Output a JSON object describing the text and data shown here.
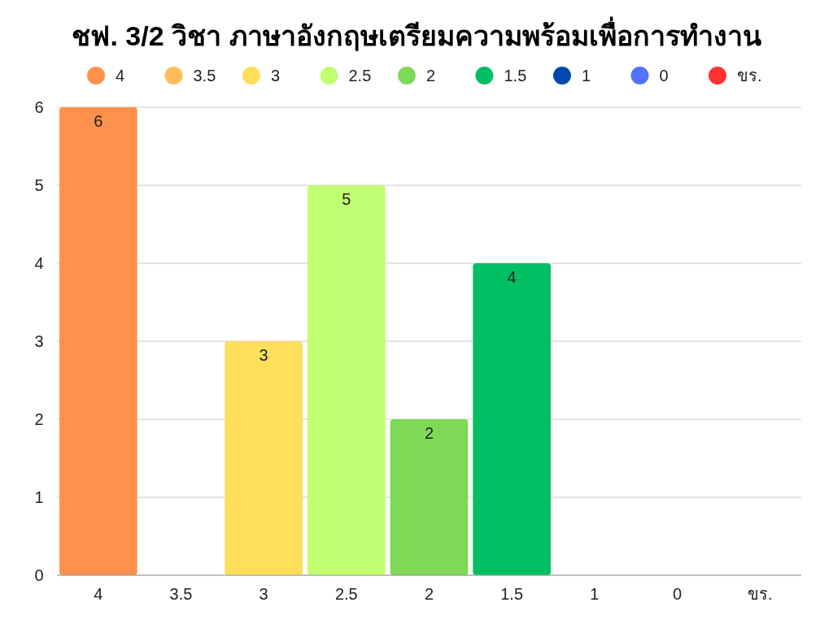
{
  "chart_data": {
    "type": "bar",
    "title": "ชฟ. 3/2 วิชา ภาษาอังกฤษเตรียมความพร้อมเพื่อการทำงาน",
    "categories": [
      "4",
      "3.5",
      "3",
      "2.5",
      "2",
      "1.5",
      "1",
      "0",
      "ขร."
    ],
    "series": [
      {
        "name": "4",
        "color": "#ff914d",
        "values": [
          6,
          null,
          null,
          null,
          null,
          null,
          null,
          null,
          null
        ]
      },
      {
        "name": "3.5",
        "color": "#ffbd59",
        "values": [
          null,
          0,
          null,
          null,
          null,
          null,
          null,
          null,
          null
        ]
      },
      {
        "name": "3",
        "color": "#ffde59",
        "values": [
          null,
          null,
          3,
          null,
          null,
          null,
          null,
          null,
          null
        ]
      },
      {
        "name": "2.5",
        "color": "#c1ff72",
        "values": [
          null,
          null,
          null,
          5,
          null,
          null,
          null,
          null,
          null
        ]
      },
      {
        "name": "2",
        "color": "#7ed957",
        "values": [
          null,
          null,
          null,
          null,
          2,
          null,
          null,
          null,
          null
        ]
      },
      {
        "name": "1.5",
        "color": "#00bf63",
        "values": [
          null,
          null,
          null,
          null,
          null,
          4,
          null,
          null,
          null
        ]
      },
      {
        "name": "1",
        "color": "#004aad",
        "values": [
          null,
          null,
          null,
          null,
          null,
          null,
          0,
          null,
          null
        ]
      },
      {
        "name": "0",
        "color": "#5271ff",
        "values": [
          null,
          null,
          null,
          null,
          null,
          null,
          null,
          0,
          null
        ]
      },
      {
        "name": "ขร.",
        "color": "#ff3131",
        "values": [
          null,
          null,
          null,
          null,
          null,
          null,
          null,
          null,
          0
        ]
      }
    ],
    "value_labels": [
      "6",
      null,
      "3",
      "5",
      "2",
      "4",
      null,
      null,
      null
    ],
    "ylim": [
      0,
      6
    ],
    "yticks": [
      0,
      1,
      2,
      3,
      4,
      5,
      6
    ],
    "grid": "y",
    "legend": "top"
  }
}
